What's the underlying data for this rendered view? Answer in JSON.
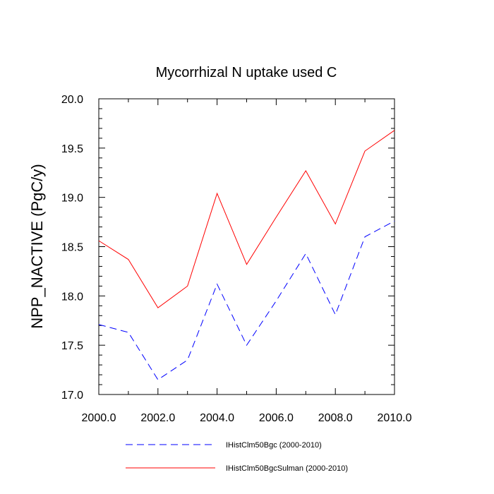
{
  "chart_data": {
    "type": "line",
    "title": "Mycorrhizal N uptake used C",
    "xlabel": "",
    "ylabel": "NPP_NACTIVE  (PgC/y)",
    "xlim": [
      2000,
      2010
    ],
    "ylim": [
      17.0,
      20.0
    ],
    "x": [
      2000,
      2001,
      2002,
      2003,
      2004,
      2005,
      2006,
      2007,
      2008,
      2009,
      2010
    ],
    "xticks": [
      "2000.0",
      "2002.0",
      "2004.0",
      "2006.0",
      "2008.0",
      "2010.0"
    ],
    "yticks": [
      "17.0",
      "17.5",
      "18.0",
      "18.5",
      "19.0",
      "19.5",
      "20.0"
    ],
    "grid": false,
    "legend_position": "bottom",
    "series": [
      {
        "name": "IHistClm50Bgc (2000-2010)",
        "color": "#0000ff",
        "style": "dashed",
        "values": [
          17.71,
          17.63,
          17.15,
          17.35,
          18.12,
          17.5,
          17.95,
          18.43,
          17.81,
          18.6,
          18.76
        ]
      },
      {
        "name": "IHistClm50BgcSulman (2000-2010)",
        "color": "#ff0000",
        "style": "solid",
        "values": [
          18.56,
          18.37,
          17.88,
          18.1,
          19.04,
          18.32,
          18.8,
          19.27,
          18.73,
          19.47,
          19.68
        ]
      }
    ]
  }
}
